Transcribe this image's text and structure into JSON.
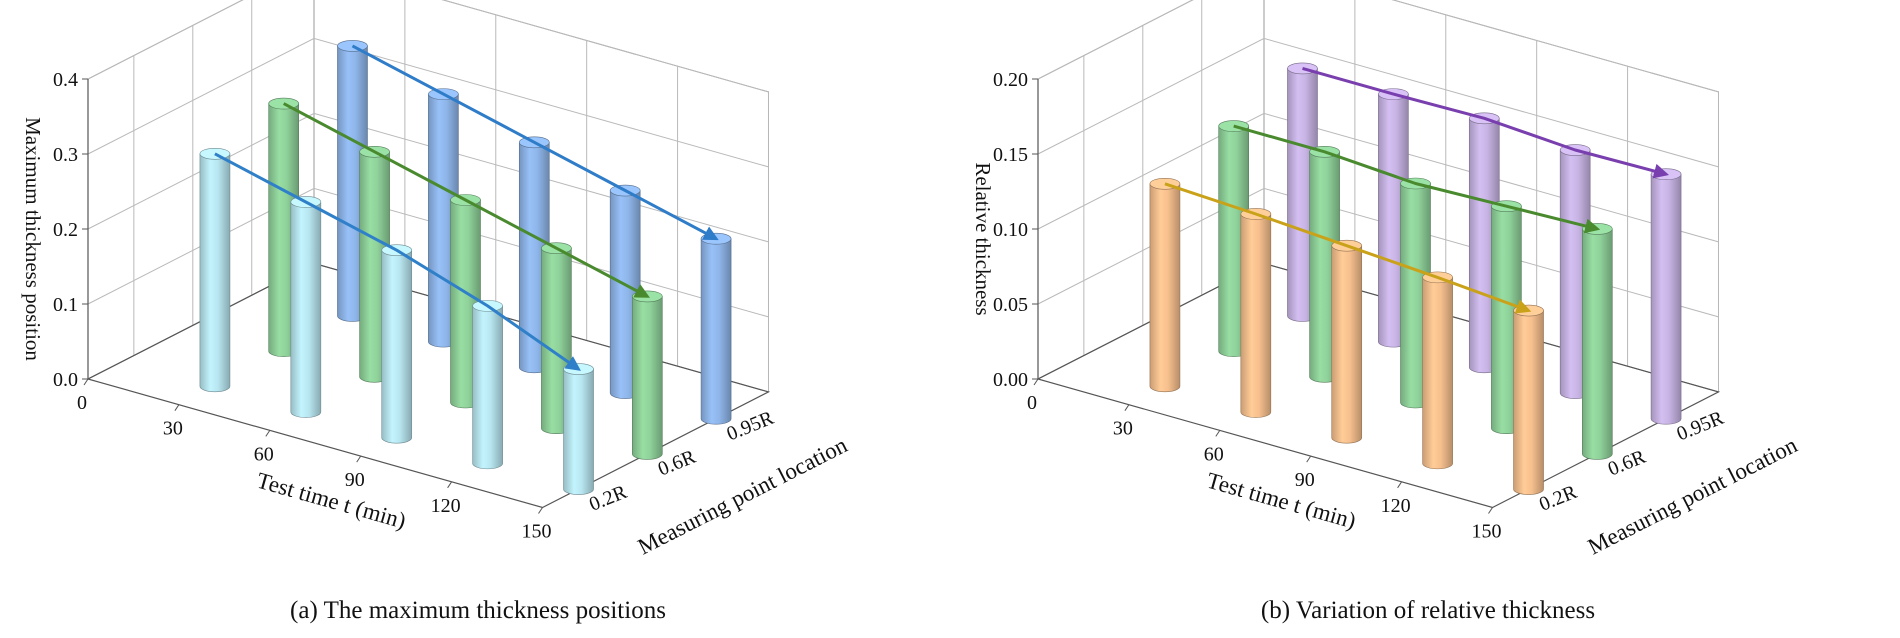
{
  "chart_data": [
    {
      "id": "a",
      "type": "bar3d",
      "caption": "(a) The maximum thickness positions",
      "ylabel": "Maximum thickness position",
      "xlabel": "Test time t (min)",
      "zlabel": "Measuring point location",
      "ylim": [
        0.0,
        0.4
      ],
      "yticks": [
        "0.0",
        "0.1",
        "0.2",
        "0.3",
        "0.4"
      ],
      "categories": [
        "0",
        "30",
        "60",
        "90",
        "120",
        "150"
      ],
      "locations": [
        "0.2R",
        "0.6R",
        "0.95R"
      ],
      "series": [
        {
          "name": "0.2R",
          "color": "#b8e6f0",
          "line": "#2f80c8",
          "x": [
            30,
            60,
            90,
            120,
            150
          ],
          "values": [
            0.31,
            0.28,
            0.25,
            0.21,
            0.16
          ],
          "t": [
            30,
            60,
            90,
            120,
            150
          ]
        },
        {
          "name": "0.6R",
          "color": "#8fd19a",
          "line": "#4a8a2e",
          "x": [
            30,
            60,
            90,
            120,
            150
          ],
          "values": [
            0.33,
            0.3,
            0.27,
            0.24,
            0.21
          ],
          "t": [
            30,
            60,
            90,
            120,
            150
          ]
        },
        {
          "name": "0.95R",
          "color": "#8fb6ea",
          "line": "#2f7cc8",
          "x": [
            30,
            60,
            90,
            120,
            150
          ],
          "values": [
            0.36,
            0.33,
            0.3,
            0.27,
            0.24
          ],
          "t": [
            30,
            60,
            90,
            120,
            150
          ]
        }
      ]
    },
    {
      "id": "b",
      "type": "bar3d",
      "caption": "(b) Variation of relative thickness",
      "ylabel": "Relative thickness",
      "xlabel": "Test time t (min)",
      "zlabel": "Measuring point location",
      "ylim": [
        0.0,
        0.2
      ],
      "yticks": [
        "0.00",
        "0.05",
        "0.10",
        "0.15",
        "0.20"
      ],
      "categories": [
        "0",
        "30",
        "60",
        "90",
        "120",
        "150"
      ],
      "locations": [
        "0.2R",
        "0.6R",
        "0.95R"
      ],
      "series": [
        {
          "name": "0.2R",
          "color": "#f7c08e",
          "line": "#c9a21a",
          "x": [
            30,
            60,
            90,
            120,
            150
          ],
          "values": [
            0.135,
            0.132,
            0.128,
            0.124,
            0.119
          ],
          "t": [
            30,
            60,
            90,
            120,
            150
          ]
        },
        {
          "name": "0.6R",
          "color": "#8fd19a",
          "line": "#4a8a2e",
          "x": [
            30,
            60,
            90,
            120,
            150
          ],
          "values": [
            0.15,
            0.15,
            0.146,
            0.148,
            0.15
          ],
          "t": [
            30,
            60,
            90,
            120,
            150
          ]
        },
        {
          "name": "0.95R",
          "color": "#c8b4e4",
          "line": "#7a3fae",
          "x": [
            30,
            60,
            90,
            120,
            150
          ],
          "values": [
            0.165,
            0.165,
            0.166,
            0.162,
            0.163
          ],
          "t": [
            30,
            60,
            90,
            120,
            150
          ]
        }
      ]
    }
  ]
}
